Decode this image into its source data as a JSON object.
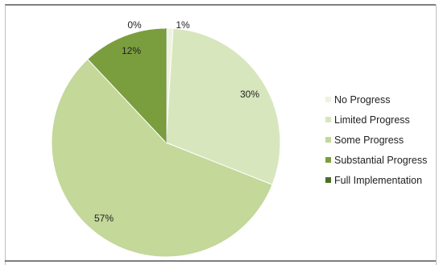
{
  "chart_data": {
    "type": "pie",
    "categories": [
      "No Progress",
      "Limited Progress",
      "Some Progress",
      "Substantial Progress",
      "Full Implementation"
    ],
    "values": [
      1,
      30,
      57,
      12,
      0
    ],
    "value_labels": [
      "1%",
      "30%",
      "57%",
      "12%",
      "0%"
    ],
    "colors": [
      "#eef3e0",
      "#d8e6bd",
      "#c3d899",
      "#7a9e3e",
      "#4b6e26"
    ],
    "legend_position": "right",
    "title": ""
  }
}
